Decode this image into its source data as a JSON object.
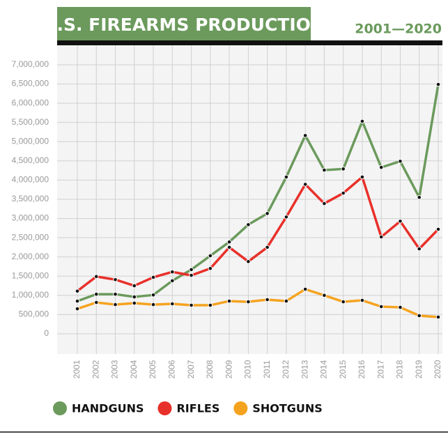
{
  "chart_data": {
    "type": "line",
    "title": "U.S. FIREARMS PRODUCTION",
    "subtitle": "2001—2020",
    "categories": [
      "2001",
      "2002",
      "2003",
      "2004",
      "2005",
      "2006",
      "2007",
      "2008",
      "2009",
      "2010",
      "2011",
      "2012",
      "2013",
      "2014",
      "2015",
      "2016",
      "2017",
      "2018",
      "2019",
      "2020"
    ],
    "series": [
      {
        "name": "HANDGUNS",
        "color": "#6b9a5c",
        "values": [
          850000,
          1030000,
          1030000,
          960000,
          1010000,
          1380000,
          1670000,
          2030000,
          2390000,
          2840000,
          3130000,
          4080000,
          5160000,
          4260000,
          4290000,
          5530000,
          4330000,
          4490000,
          3550000,
          6490000
        ]
      },
      {
        "name": "RIFLES",
        "color": "#e8302a",
        "values": [
          1110000,
          1490000,
          1410000,
          1250000,
          1470000,
          1610000,
          1520000,
          1700000,
          2250000,
          1880000,
          2250000,
          3040000,
          3890000,
          3390000,
          3660000,
          4080000,
          2520000,
          2930000,
          2210000,
          2720000
        ]
      },
      {
        "name": "SHOTGUNS",
        "color": "#f5a31f",
        "values": [
          650000,
          815000,
          760000,
          797000,
          760000,
          780000,
          743000,
          743000,
          851000,
          833000,
          888000,
          851000,
          1160000,
          1000000,
          833000,
          870000,
          707000,
          688000,
          471000,
          435000
        ]
      }
    ],
    "ylim": [
      0,
      7000000
    ],
    "yticks": [
      {
        "value": 0,
        "label": "0"
      },
      {
        "value": 500000,
        "label": "500,000"
      },
      {
        "value": 1000000,
        "label": "1,000,000"
      },
      {
        "value": 1500000,
        "label": "1,500,000"
      },
      {
        "value": 2000000,
        "label": "2,000,000"
      },
      {
        "value": 2500000,
        "label": "2,500,000"
      },
      {
        "value": 3000000,
        "label": "3,000,000"
      },
      {
        "value": 3500000,
        "label": "3,500,000"
      },
      {
        "value": 4000000,
        "label": "4,000,000"
      },
      {
        "value": 4500000,
        "label": "4,500,000"
      },
      {
        "value": 5000000,
        "label": "5,000,000"
      },
      {
        "value": 5500000,
        "label": "5,500,000"
      },
      {
        "value": 6000000,
        "label": "6,000,000"
      },
      {
        "value": 6500000,
        "label": "6,500,000"
      },
      {
        "value": 7000000,
        "label": "7,000,000"
      }
    ],
    "grid": true
  }
}
